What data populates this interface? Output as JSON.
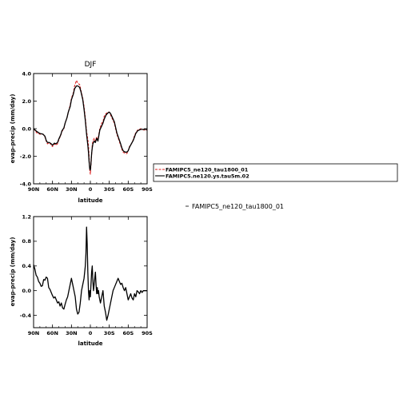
{
  "chart_data": [
    {
      "type": "line",
      "title": "DJF",
      "xlabel": "latitude",
      "ylabel": "evap-precip (mm/day)",
      "xlim": [
        90,
        -90
      ],
      "ylim": [
        -4.0,
        4.0
      ],
      "x_ticks": [
        90,
        60,
        30,
        0,
        -30,
        -60,
        -90
      ],
      "x_tick_labels": [
        "90N",
        "60N",
        "30N",
        "0",
        "30S",
        "60S",
        "90S"
      ],
      "y_ticks": [
        -4.0,
        -2.0,
        0.0,
        2.0,
        4.0
      ],
      "y_tick_labels": [
        "-4.0",
        "-2.0",
        "0.0",
        "2.0",
        "4.0"
      ],
      "legend_position": "right",
      "grid": false,
      "series": [
        {
          "name": "FAMIPC5_ne120_tau1800_01",
          "color": "#dd2222",
          "dash": "dashed",
          "x": [
            90,
            85,
            80,
            75,
            72,
            70,
            68,
            65,
            62,
            60,
            57,
            55,
            52,
            50,
            47,
            45,
            42,
            40,
            37,
            35,
            32,
            30,
            27,
            25,
            22,
            20,
            17,
            15,
            12,
            10,
            8,
            6,
            4,
            3,
            2,
            1,
            0,
            -1,
            -2,
            -3,
            -4,
            -6,
            -8,
            -10,
            -12,
            -15,
            -18,
            -20,
            -22,
            -25,
            -28,
            -30,
            -32,
            -35,
            -38,
            -40,
            -42,
            -45,
            -48,
            -50,
            -52,
            -55,
            -58,
            -60,
            -62,
            -65,
            -68,
            -70,
            -72,
            -75,
            -80,
            -85,
            -90
          ],
          "y": [
            0.0,
            -0.3,
            -0.4,
            -0.4,
            -0.6,
            -0.9,
            -1.1,
            -1.0,
            -1.2,
            -1.3,
            -1.1,
            -1.2,
            -1.1,
            -0.8,
            -0.5,
            -0.2,
            0.0,
            0.4,
            0.8,
            1.2,
            1.7,
            2.2,
            2.6,
            3.1,
            3.5,
            3.3,
            3.2,
            2.8,
            2.2,
            1.6,
            0.8,
            -0.2,
            -0.8,
            -1.2,
            -2.0,
            -3.0,
            -3.3,
            -2.6,
            -1.9,
            -1.2,
            -0.9,
            -0.7,
            -0.9,
            -0.6,
            -0.8,
            0.0,
            0.4,
            0.5,
            0.9,
            1.1,
            1.2,
            1.2,
            1.0,
            0.7,
            0.4,
            0.0,
            -0.4,
            -0.8,
            -1.2,
            -1.5,
            -1.7,
            -1.8,
            -1.8,
            -1.6,
            -1.3,
            -1.1,
            -0.8,
            -0.5,
            -0.3,
            -0.1,
            0.0,
            -0.1,
            -0.1
          ]
        },
        {
          "name": "FAMIPC5.ne120.ys.tau5m.02",
          "color": "#000000",
          "dash": "solid",
          "x": [
            90,
            85,
            80,
            75,
            72,
            70,
            68,
            65,
            62,
            60,
            57,
            55,
            52,
            50,
            47,
            45,
            42,
            40,
            37,
            35,
            32,
            30,
            27,
            25,
            22,
            20,
            17,
            15,
            12,
            10,
            8,
            6,
            4,
            3,
            2,
            1,
            0,
            -1,
            -2,
            -3,
            -4,
            -6,
            -8,
            -10,
            -12,
            -15,
            -18,
            -20,
            -22,
            -25,
            -28,
            -30,
            -32,
            -35,
            -38,
            -40,
            -42,
            -45,
            -48,
            -50,
            -52,
            -55,
            -58,
            -60,
            -62,
            -65,
            -68,
            -70,
            -72,
            -75,
            -80,
            -85,
            -90
          ],
          "y": [
            0.0,
            -0.2,
            -0.35,
            -0.4,
            -0.55,
            -0.85,
            -1.0,
            -1.0,
            -1.1,
            -1.2,
            -1.05,
            -1.1,
            -1.0,
            -0.75,
            -0.45,
            -0.15,
            0.05,
            0.4,
            0.8,
            1.2,
            1.6,
            2.1,
            2.5,
            2.9,
            3.1,
            3.1,
            3.0,
            2.7,
            2.1,
            1.4,
            0.6,
            -0.4,
            -1.2,
            -1.7,
            -2.4,
            -2.9,
            -3.0,
            -2.5,
            -1.8,
            -1.4,
            -1.1,
            -0.9,
            -1.0,
            -0.7,
            -0.9,
            -0.1,
            0.2,
            0.4,
            0.7,
            1.0,
            1.15,
            1.2,
            1.1,
            0.8,
            0.5,
            0.1,
            -0.3,
            -0.7,
            -1.1,
            -1.4,
            -1.6,
            -1.7,
            -1.7,
            -1.6,
            -1.35,
            -1.1,
            -0.85,
            -0.6,
            -0.35,
            -0.15,
            -0.05,
            -0.05,
            -0.05
          ]
        }
      ]
    },
    {
      "type": "line",
      "title": "",
      "xlabel": "latitude",
      "ylabel": "evap-precip (mm/day)",
      "xlim": [
        90,
        -90
      ],
      "ylim": [
        -0.6,
        1.2
      ],
      "x_ticks": [
        90,
        60,
        30,
        0,
        -30,
        -60,
        -90
      ],
      "x_tick_labels": [
        "90N",
        "60N",
        "30N",
        "0",
        "30S",
        "60S",
        "90S"
      ],
      "y_ticks": [
        -0.4,
        0.0,
        0.4,
        0.8,
        1.2
      ],
      "y_tick_labels": [
        "-0.4",
        "0.0",
        "0.4",
        "0.8",
        "1.2"
      ],
      "grid": false,
      "series": [
        {
          "color": "#000000",
          "dash": "solid",
          "x": [
            90,
            88,
            86,
            84,
            82,
            80,
            78,
            76,
            74,
            72,
            70,
            68,
            66,
            64,
            62,
            60,
            58,
            56,
            54,
            52,
            50,
            48,
            46,
            44,
            42,
            40,
            38,
            36,
            34,
            32,
            30,
            28,
            26,
            24,
            22,
            20,
            18,
            16,
            14,
            12,
            10,
            8,
            7,
            6,
            5,
            4,
            3,
            2,
            1,
            0,
            -1,
            -2,
            -3,
            -4,
            -5,
            -6,
            -7,
            -8,
            -9,
            -10,
            -11,
            -12,
            -13,
            -14,
            -16,
            -18,
            -20,
            -22,
            -24,
            -26,
            -28,
            -30,
            -32,
            -34,
            -36,
            -38,
            -40,
            -42,
            -44,
            -46,
            -48,
            -50,
            -52,
            -54,
            -56,
            -58,
            -60,
            -62,
            -64,
            -66,
            -68,
            -70,
            -72,
            -74,
            -76,
            -78,
            -80,
            -82,
            -84,
            -86,
            -88,
            -90
          ],
          "y": [
            0.42,
            0.35,
            0.25,
            0.22,
            0.15,
            0.12,
            0.07,
            0.08,
            0.18,
            0.17,
            0.22,
            0.2,
            0.05,
            0.02,
            -0.03,
            -0.08,
            -0.12,
            -0.1,
            -0.15,
            -0.2,
            -0.18,
            -0.25,
            -0.2,
            -0.28,
            -0.3,
            -0.22,
            -0.15,
            -0.1,
            0.0,
            0.1,
            0.2,
            0.1,
            0.0,
            -0.1,
            -0.3,
            -0.38,
            -0.35,
            -0.2,
            0.0,
            0.1,
            0.2,
            0.4,
            0.6,
            1.03,
            0.75,
            0.3,
            0.0,
            -0.15,
            0.0,
            -0.1,
            0.1,
            0.3,
            0.4,
            0.15,
            0.0,
            0.1,
            0.2,
            0.3,
            0.1,
            -0.05,
            0.05,
            -0.05,
            0.0,
            -0.1,
            -0.2,
            -0.1,
            0.0,
            -0.25,
            -0.35,
            -0.48,
            -0.4,
            -0.3,
            -0.2,
            -0.1,
            0.0,
            0.05,
            0.1,
            0.15,
            0.2,
            0.15,
            0.1,
            0.12,
            0.05,
            0.0,
            0.05,
            -0.05,
            -0.15,
            -0.1,
            -0.05,
            -0.12,
            -0.15,
            -0.05,
            -0.1,
            0.0,
            -0.02,
            -0.05,
            0.0,
            -0.03,
            0.0,
            0.0,
            0.0,
            0.0
          ]
        }
      ]
    }
  ],
  "annotation": "FAMIPC5_ne120_tau1800_01"
}
